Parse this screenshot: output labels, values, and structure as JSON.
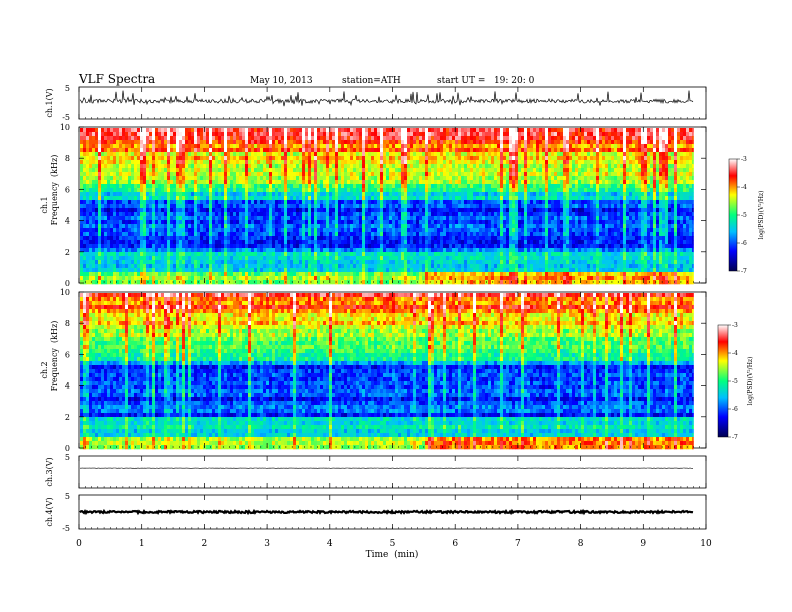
{
  "header": {
    "title": "VLF Spectra",
    "date": "May 10, 2013",
    "station": "station=ATH",
    "start": "start UT =   19: 20: 0"
  },
  "chart_data": [
    {
      "type": "line",
      "panel": "ch1-waveform",
      "ylabel": "ch.1(V)",
      "ylim": [
        -5,
        5
      ],
      "yticks": [
        "5",
        "-5"
      ],
      "level_v": 0.6,
      "noise_v": 0.6,
      "color": "#000000"
    },
    {
      "type": "heatmap",
      "panel": "ch1-spectrogram",
      "ylabel_channel": "ch.1",
      "ylabel": "Frequency  (kHz)",
      "ylim": [
        0,
        10
      ],
      "yticks": [
        "0",
        "2",
        "4",
        "6",
        "8",
        "10"
      ],
      "colorbar": {
        "label": "log(PSD)(V²/Hz)",
        "range": [
          -7,
          -3
        ],
        "ticks": [
          "-7",
          "-6",
          "-5",
          "-4",
          "-3"
        ],
        "colors": [
          "#000050",
          "#0000ff",
          "#00bfff",
          "#00ff7f",
          "#ffff00",
          "#ff0000",
          "#ffffff"
        ]
      }
    },
    {
      "type": "heatmap",
      "panel": "ch2-spectrogram",
      "ylabel_channel": "ch.2",
      "ylabel": "Frequency  (kHz)",
      "ylim": [
        0,
        10
      ],
      "yticks": [
        "0",
        "2",
        "4",
        "6",
        "8",
        "10"
      ],
      "colorbar": {
        "label": "log(PSD)(V²/Hz)",
        "range": [
          -7,
          -3
        ],
        "ticks": [
          "-7",
          "-6",
          "-5",
          "-4",
          "-3"
        ],
        "colors": [
          "#000050",
          "#0000ff",
          "#00bfff",
          "#00ff7f",
          "#ffff00",
          "#ff0000",
          "#ffffff"
        ]
      }
    },
    {
      "type": "line",
      "panel": "ch3-waveform",
      "ylabel": "ch.3(V)",
      "ylim": [
        -5,
        5
      ],
      "yticks": [
        "5"
      ],
      "level_v": 1.2,
      "noise_v": 0.05,
      "color": "#000000"
    },
    {
      "type": "line",
      "panel": "ch4-waveform",
      "ylabel": "ch.4(V)",
      "ylim": [
        -5,
        5
      ],
      "yticks": [
        "5",
        "-5"
      ],
      "level_v": 0.0,
      "noise_v": 0.3,
      "color": "#000000"
    }
  ],
  "xaxis": {
    "xlabel": "Time  (min)",
    "xlim": [
      0,
      10
    ],
    "xticks": [
      "0",
      "1",
      "2",
      "3",
      "4",
      "5",
      "6",
      "7",
      "8",
      "9",
      "10"
    ],
    "data_end_min": 9.8
  }
}
